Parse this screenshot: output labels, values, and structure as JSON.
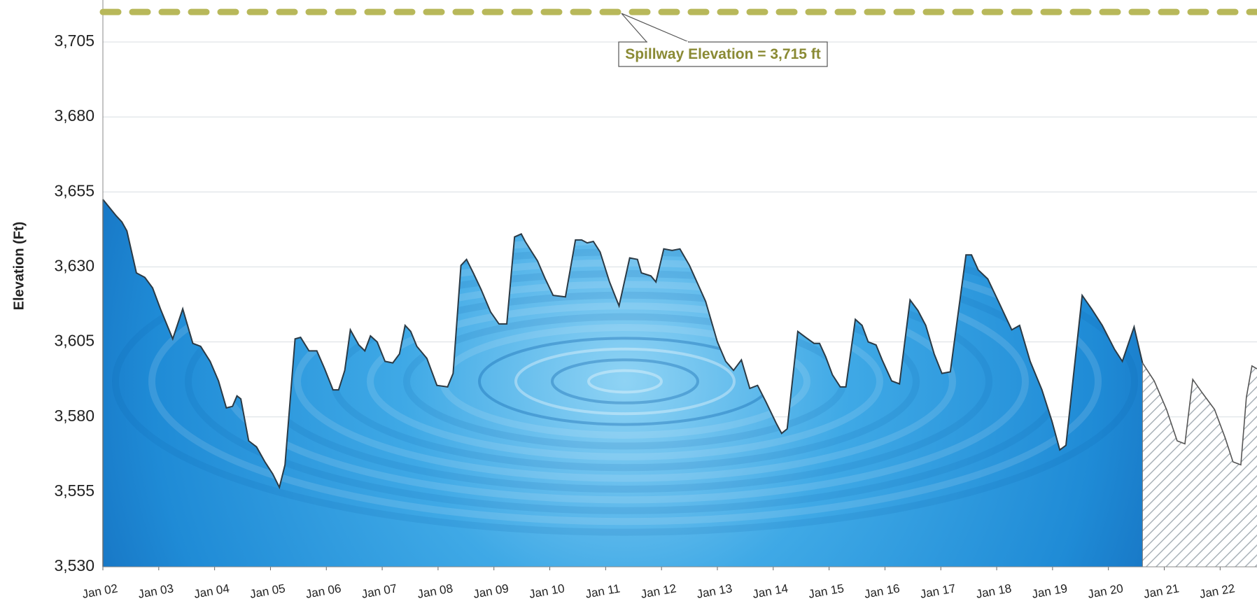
{
  "chart_data": {
    "type": "area",
    "y_label": "Elevation (Ft)",
    "xlim": [
      0,
      20.66
    ],
    "ylim": [
      3530,
      3719
    ],
    "xticks": [
      {
        "value": 0,
        "label": "Jan 02"
      },
      {
        "value": 1,
        "label": "Jan 03"
      },
      {
        "value": 2,
        "label": "Jan 04"
      },
      {
        "value": 3,
        "label": "Jan 05"
      },
      {
        "value": 4,
        "label": "Jan 06"
      },
      {
        "value": 5,
        "label": "Jan 07"
      },
      {
        "value": 6,
        "label": "Jan 08"
      },
      {
        "value": 7,
        "label": "Jan 09"
      },
      {
        "value": 8,
        "label": "Jan 10"
      },
      {
        "value": 9,
        "label": "Jan 11"
      },
      {
        "value": 10,
        "label": "Jan 12"
      },
      {
        "value": 11,
        "label": "Jan 13"
      },
      {
        "value": 12,
        "label": "Jan 14"
      },
      {
        "value": 13,
        "label": "Jan 15"
      },
      {
        "value": 14,
        "label": "Jan 16"
      },
      {
        "value": 15,
        "label": "Jan 17"
      },
      {
        "value": 16,
        "label": "Jan 18"
      },
      {
        "value": 17,
        "label": "Jan 19"
      },
      {
        "value": 18,
        "label": "Jan 20"
      },
      {
        "value": 19,
        "label": "Jan 21"
      },
      {
        "value": 20,
        "label": "Jan 22"
      }
    ],
    "yticks": [
      {
        "value": 3530,
        "label": "3,530"
      },
      {
        "value": 3555,
        "label": "3,555"
      },
      {
        "value": 3580,
        "label": "3,580"
      },
      {
        "value": 3605,
        "label": "3,605"
      },
      {
        "value": 3630,
        "label": "3,630"
      },
      {
        "value": 3655,
        "label": "3,655"
      },
      {
        "value": 3680,
        "label": "3,680"
      },
      {
        "value": 3705,
        "label": "3,705"
      }
    ],
    "grid": true,
    "spillway": {
      "value": 3715,
      "label": "Spillway Elevation = 3,715 ft",
      "color": "#b8b85a"
    },
    "series": [
      {
        "color": "#2a96dc",
        "fill": "solid",
        "x": [
          0,
          0.24,
          0.34,
          0.43,
          0.6,
          0.75,
          0.89,
          1.03,
          1.25,
          1.43,
          1.61,
          1.75,
          1.92,
          2.07,
          2.21,
          2.32,
          2.4,
          2.47,
          2.61,
          2.75,
          2.9,
          3.04,
          3.16,
          3.26,
          3.44,
          3.54,
          3.69,
          3.83,
          3.97,
          4.12,
          4.22,
          4.33,
          4.43,
          4.58,
          4.69,
          4.79,
          4.91,
          5.05,
          5.19,
          5.31,
          5.41,
          5.51,
          5.62,
          5.8,
          5.98,
          6.17,
          6.27,
          6.41,
          6.51,
          6.63,
          6.77,
          6.94,
          7.09,
          7.23,
          7.37,
          7.49,
          7.56,
          7.78,
          7.92,
          8.06,
          8.28,
          8.46,
          8.57,
          8.67,
          8.78,
          8.9,
          9.07,
          9.24,
          9.43,
          9.57,
          9.64,
          9.81,
          9.9,
          10.04,
          10.19,
          10.33,
          10.5,
          10.79,
          11.0,
          11.15,
          11.29,
          11.43,
          11.58,
          11.72,
          11.87,
          12.05,
          12.15,
          12.25,
          12.44,
          12.58,
          12.73,
          12.83,
          12.94,
          13.06,
          13.2,
          13.3,
          13.47,
          13.59,
          13.7,
          13.84,
          13.95,
          14.12,
          14.26,
          14.45,
          14.59,
          14.73,
          14.88,
          15.02,
          15.17,
          15.45,
          15.55,
          15.67,
          15.84,
          16.03,
          16.27,
          16.41,
          16.6,
          16.81,
          16.99,
          17.13,
          17.24,
          17.53,
          17.7,
          17.89,
          18.11,
          18.25,
          18.46,
          18.61
        ],
        "values": [
          3652.5,
          3647,
          3645,
          3642,
          3628,
          3626.5,
          3623,
          3616,
          3606,
          3616,
          3604.5,
          3603.5,
          3598.5,
          3592,
          3583,
          3583.5,
          3587,
          3586,
          3572,
          3570,
          3565,
          3561,
          3556.5,
          3564,
          3606,
          3606.5,
          3602,
          3602,
          3596,
          3589,
          3589,
          3595.5,
          3609,
          3604,
          3602,
          3607,
          3605,
          3598.5,
          3598,
          3601,
          3610.5,
          3608.5,
          3603.5,
          3599.5,
          3590.5,
          3590,
          3594.5,
          3630.5,
          3632.5,
          3628,
          3622.5,
          3615,
          3611,
          3611,
          3640,
          3641,
          3638.5,
          3632,
          3626,
          3620.5,
          3620,
          3639,
          3639,
          3638,
          3638.5,
          3635,
          3625,
          3617,
          3633,
          3632.5,
          3628,
          3627,
          3625,
          3636,
          3635.5,
          3636,
          3630.5,
          3618.5,
          3605,
          3598.5,
          3595.5,
          3599,
          3589.5,
          3590.5,
          3585,
          3578,
          3574.5,
          3576,
          3608.5,
          3606.5,
          3604.5,
          3604.5,
          3600,
          3594,
          3590,
          3590,
          3612.5,
          3610.5,
          3605,
          3604,
          3599,
          3592,
          3591,
          3619,
          3615.5,
          3610.5,
          3601,
          3594.5,
          3595,
          3634,
          3634,
          3629,
          3626,
          3618.5,
          3609,
          3610.5,
          3598.5,
          3589,
          3578.5,
          3569,
          3570.5,
          3620.5,
          3616,
          3610.5,
          3602.5,
          3598.5,
          3610,
          3598
        ]
      },
      {
        "color": "#a9b2b9",
        "fill": "hatch",
        "x": [
          18.61,
          18.82,
          19.04,
          19.23,
          19.37,
          19.51,
          19.68,
          19.9,
          20.09,
          20.23,
          20.37,
          20.47,
          20.57,
          20.66
        ],
        "values": [
          3598,
          3592,
          3582.5,
          3572,
          3571,
          3592.5,
          3588,
          3582.5,
          3573,
          3565,
          3564,
          3586.5,
          3597,
          3596
        ]
      }
    ]
  }
}
